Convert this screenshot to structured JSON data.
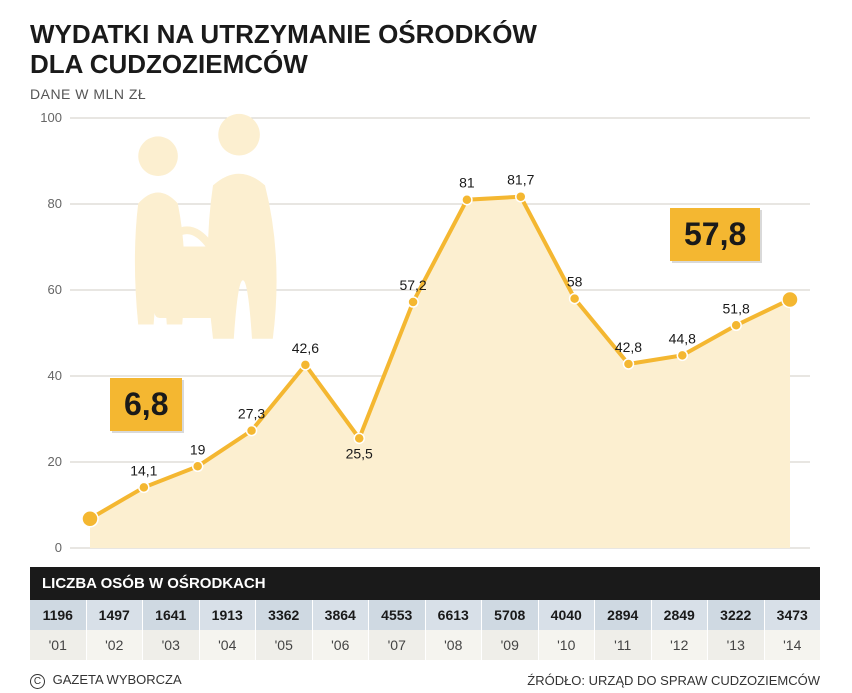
{
  "title_line1": "WYDATKI NA UTRZYMANIE OŚRODKÓW",
  "title_line2": "DLA CUDZOZIEMCÓW",
  "subtitle": "DANE W MLN ZŁ",
  "chart": {
    "type": "area-line",
    "ylim": [
      0,
      100
    ],
    "ytick_step": 20,
    "yticks": [
      "0",
      "20",
      "40",
      "60",
      "80",
      "100"
    ],
    "years": [
      "'01",
      "'02",
      "'03",
      "'04",
      "'05",
      "'06",
      "'07",
      "'08",
      "'09",
      "'10",
      "'11",
      "'12",
      "'13",
      "'14"
    ],
    "values": [
      6.8,
      14.1,
      19,
      27.3,
      42.6,
      25.5,
      57.2,
      81,
      81.7,
      58,
      42.8,
      44.8,
      51.8,
      57.8
    ],
    "value_labels": [
      "6,8",
      "14,1",
      "19",
      "27,3",
      "42,6",
      "25,5",
      "57,2",
      "81",
      "81,7",
      "58",
      "42,8",
      "44,8",
      "51,8",
      "57,8"
    ],
    "line_color": "#f4b731",
    "line_width": 4,
    "marker_radius": 5,
    "marker_fill": "#f4b731",
    "marker_stroke": "#fff",
    "area_fill": "#fcefd0",
    "grid_color": "#d0cec6",
    "axis_text_color": "#666",
    "label_fontsize": 14,
    "first_highlight_index": 0,
    "last_highlight_index": 13
  },
  "callouts": {
    "first": "6,8",
    "last": "57,8"
  },
  "table": {
    "header": "LICZBA OSÓB W OŚRODKACH",
    "counts": [
      "1196",
      "1497",
      "1641",
      "1913",
      "3362",
      "3864",
      "4553",
      "6613",
      "5708",
      "4040",
      "2894",
      "2849",
      "3222",
      "3473"
    ]
  },
  "footer": {
    "copyright": "GAZETA WYBORCZA",
    "source": "ŹRÓDŁO: URZĄD DO SPRAW CUDZOZIEMCÓW"
  },
  "silhouette_color": "#fcefd0"
}
